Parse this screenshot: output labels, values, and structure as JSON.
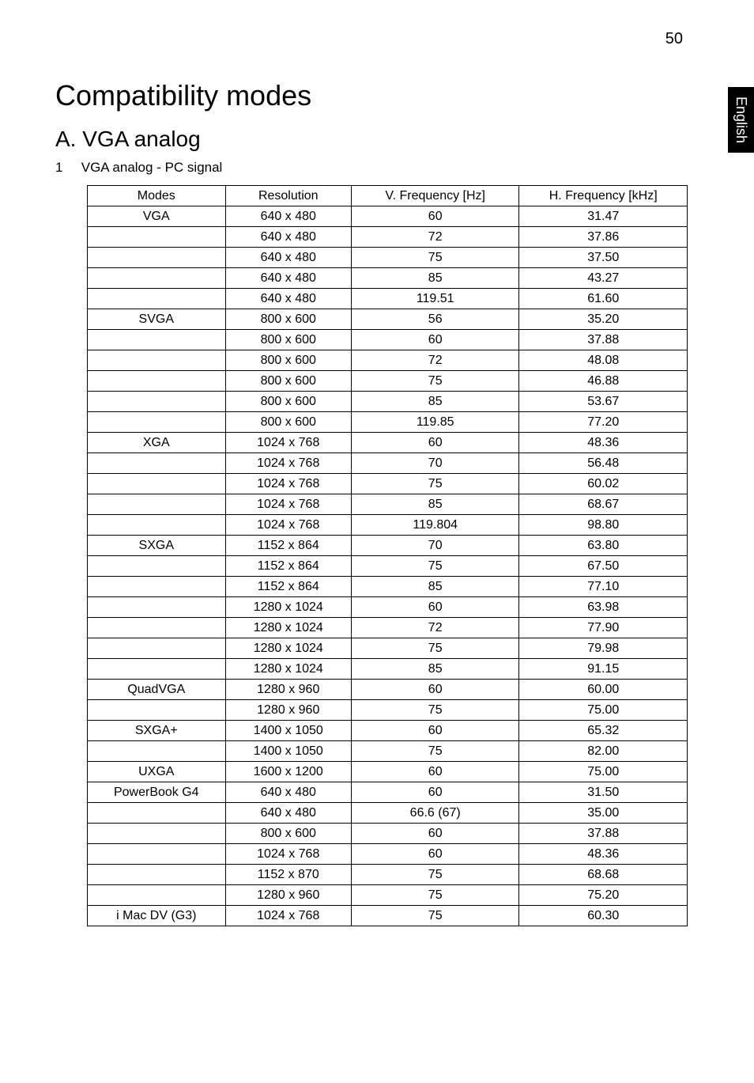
{
  "page_number": "50",
  "side_tab": "English",
  "title": "Compatibility modes",
  "section_title": "A. VGA analog",
  "list_number": "1",
  "list_text": "VGA analog - PC signal",
  "table": {
    "headers": [
      "Modes",
      "Resolution",
      "V. Frequency [Hz]",
      "H. Frequency [kHz]"
    ],
    "col_widths_pct": [
      23,
      21,
      28,
      28
    ],
    "border_color": "#000000",
    "font_size": 16,
    "rows": [
      [
        "VGA",
        "640 x 480",
        "60",
        "31.47"
      ],
      [
        "",
        "640 x 480",
        "72",
        "37.86"
      ],
      [
        "",
        "640 x 480",
        "75",
        "37.50"
      ],
      [
        "",
        "640 x 480",
        "85",
        "43.27"
      ],
      [
        "",
        "640 x 480",
        "119.51",
        "61.60"
      ],
      [
        "SVGA",
        "800 x 600",
        "56",
        "35.20"
      ],
      [
        "",
        "800 x 600",
        "60",
        "37.88"
      ],
      [
        "",
        "800 x 600",
        "72",
        "48.08"
      ],
      [
        "",
        "800 x 600",
        "75",
        "46.88"
      ],
      [
        "",
        "800 x 600",
        "85",
        "53.67"
      ],
      [
        "",
        "800 x 600",
        "119.85",
        "77.20"
      ],
      [
        "XGA",
        "1024 x 768",
        "60",
        "48.36"
      ],
      [
        "",
        "1024 x 768",
        "70",
        "56.48"
      ],
      [
        "",
        "1024 x 768",
        "75",
        "60.02"
      ],
      [
        "",
        "1024 x 768",
        "85",
        "68.67"
      ],
      [
        "",
        "1024 x 768",
        "119.804",
        "98.80"
      ],
      [
        "SXGA",
        "1152 x 864",
        "70",
        "63.80"
      ],
      [
        "",
        "1152 x 864",
        "75",
        "67.50"
      ],
      [
        "",
        "1152 x 864",
        "85",
        "77.10"
      ],
      [
        "",
        "1280 x 1024",
        "60",
        "63.98"
      ],
      [
        "",
        "1280 x 1024",
        "72",
        "77.90"
      ],
      [
        "",
        "1280 x 1024",
        "75",
        "79.98"
      ],
      [
        "",
        "1280 x 1024",
        "85",
        "91.15"
      ],
      [
        "QuadVGA",
        "1280 x 960",
        "60",
        "60.00"
      ],
      [
        "",
        "1280 x 960",
        "75",
        "75.00"
      ],
      [
        "SXGA+",
        "1400 x 1050",
        "60",
        "65.32"
      ],
      [
        "",
        "1400 x 1050",
        "75",
        "82.00"
      ],
      [
        "UXGA",
        "1600 x 1200",
        "60",
        "75.00"
      ],
      [
        "PowerBook G4",
        "640 x 480",
        "60",
        "31.50"
      ],
      [
        "",
        "640 x 480",
        "66.6 (67)",
        "35.00"
      ],
      [
        "",
        "800 x 600",
        "60",
        "37.88"
      ],
      [
        "",
        "1024 x 768",
        "60",
        "48.36"
      ],
      [
        "",
        "1152 x 870",
        "75",
        "68.68"
      ],
      [
        "",
        "1280 x 960",
        "75",
        "75.20"
      ],
      [
        "i Mac DV (G3)",
        "1024 x 768",
        "75",
        "60.30"
      ]
    ]
  },
  "styles": {
    "background_color": "#ffffff",
    "text_color": "#000000",
    "tab_background": "#000000",
    "tab_text_color": "#ffffff",
    "h1_fontsize": 36,
    "h2_fontsize": 28,
    "body_fontsize": 17
  }
}
